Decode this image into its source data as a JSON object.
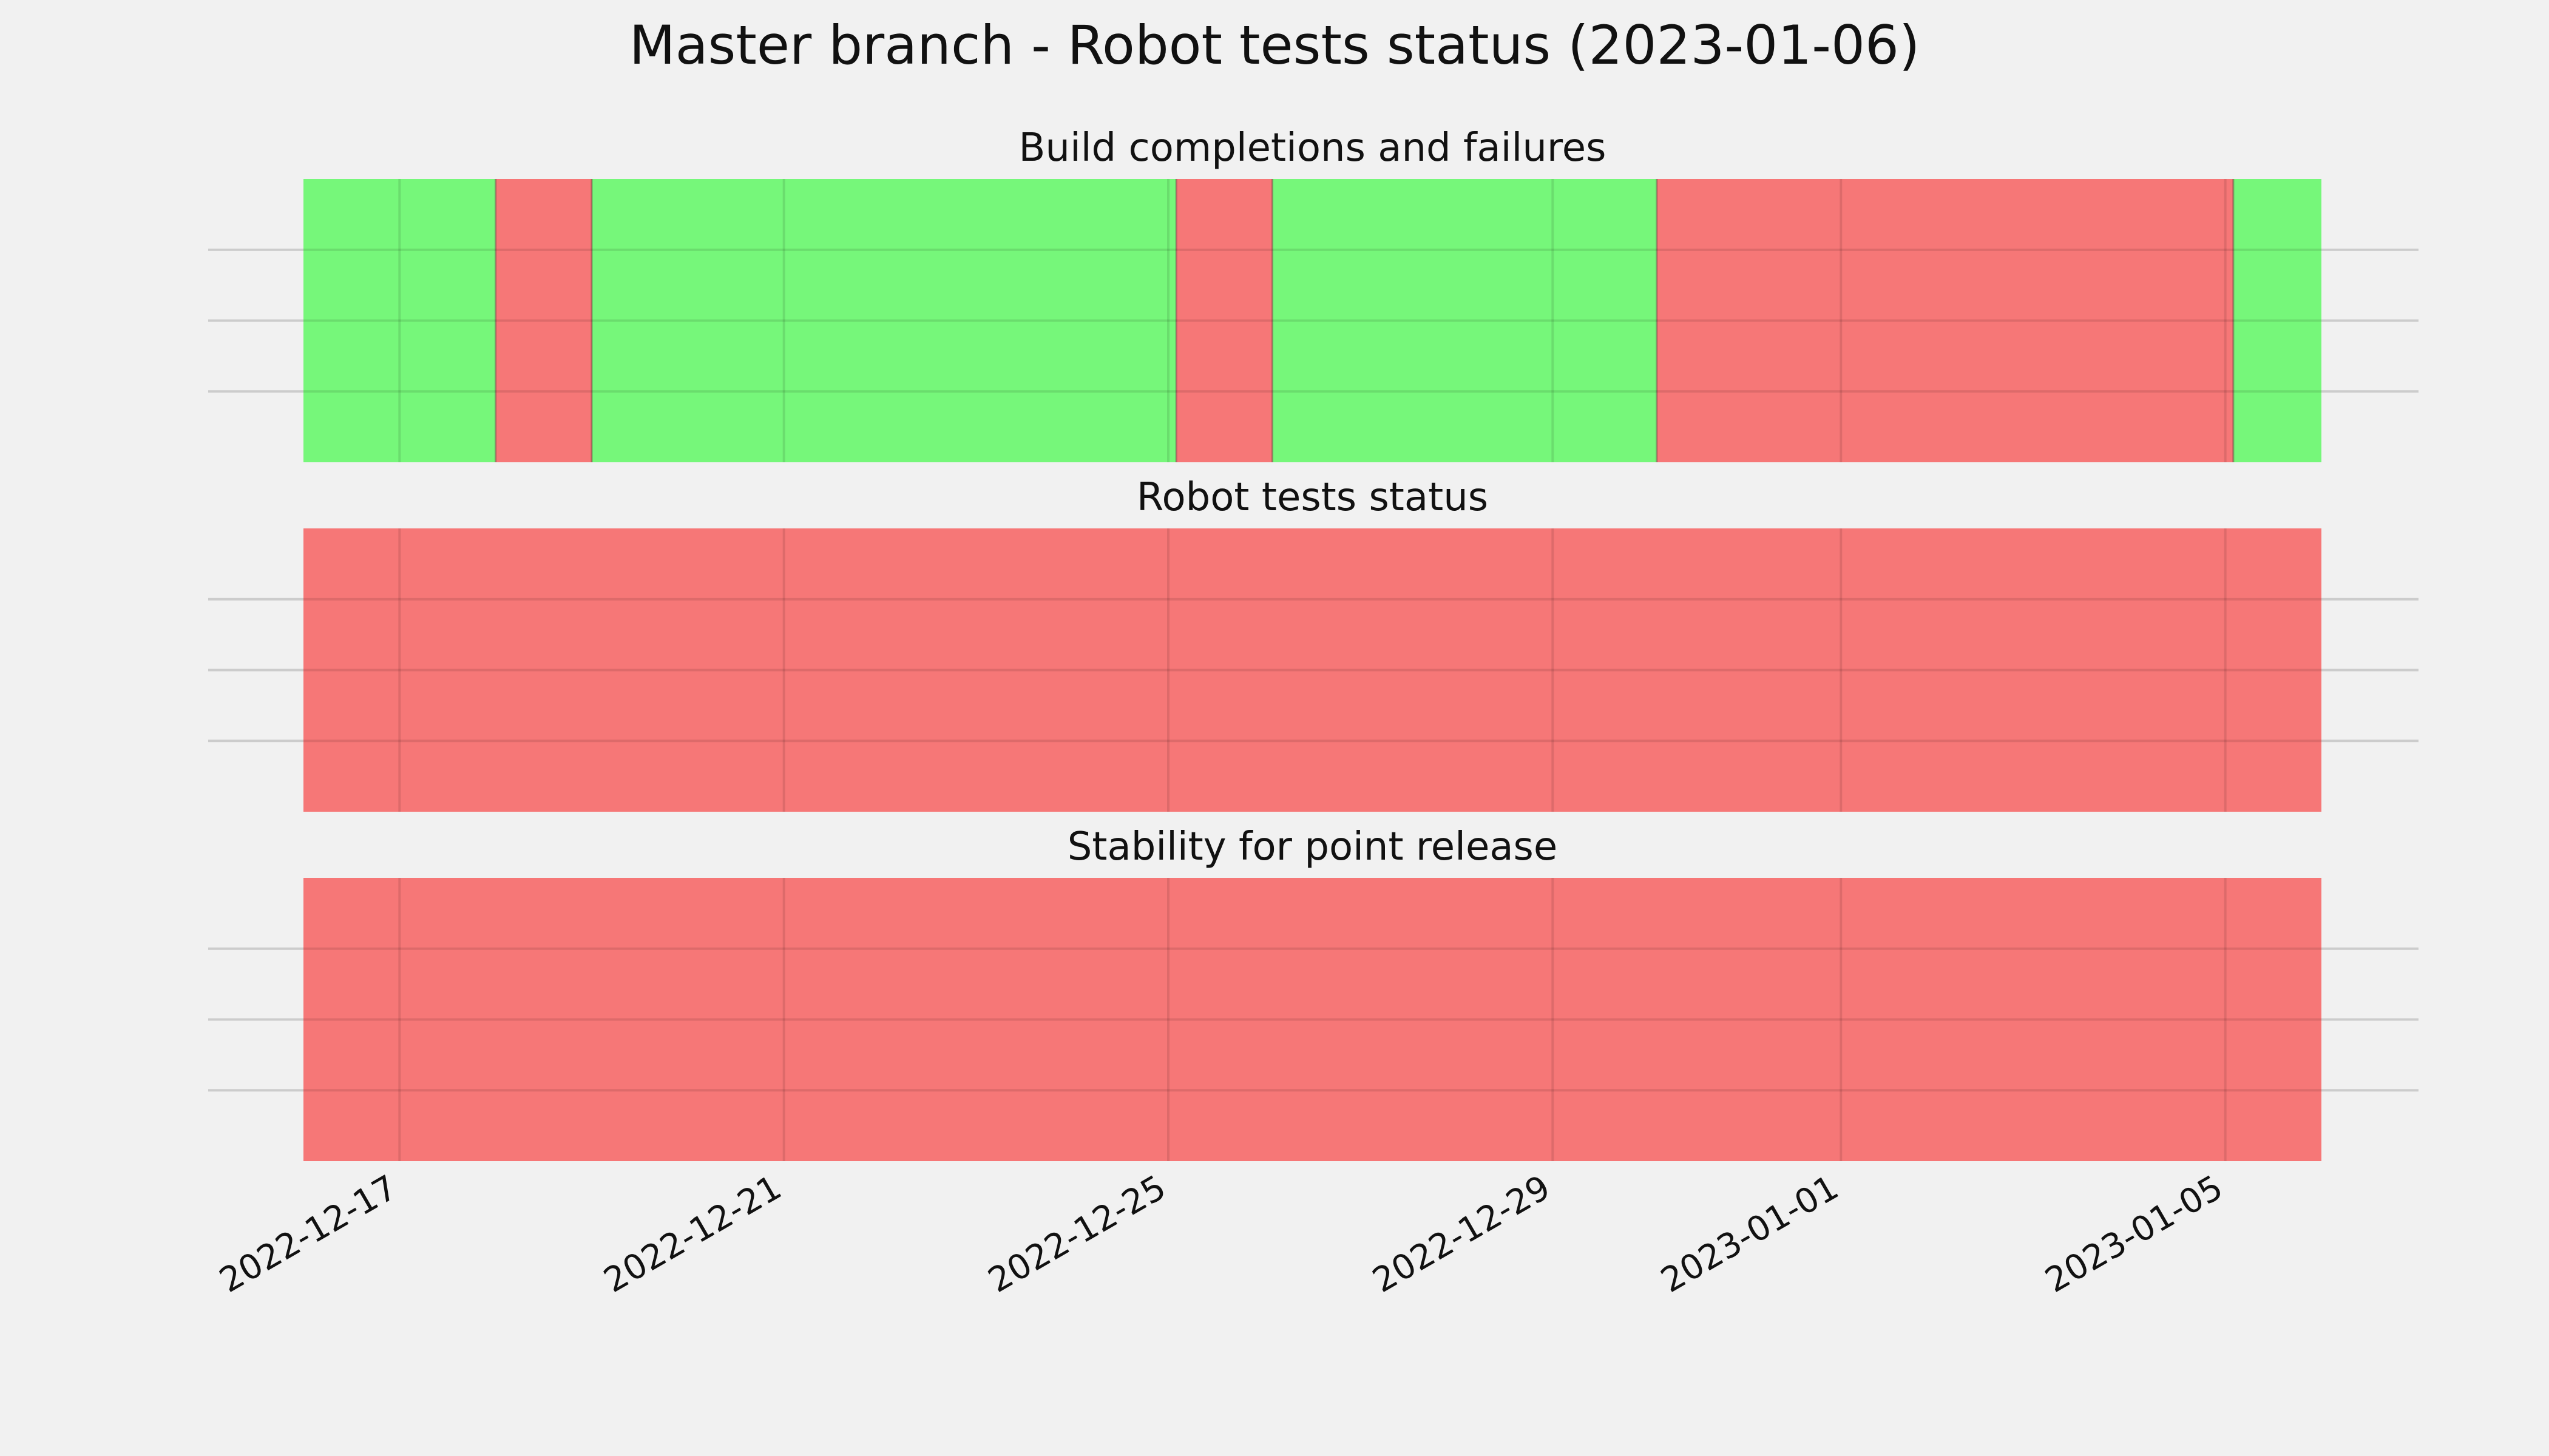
{
  "colors": {
    "background": "#f1f1f1",
    "pass": "#76f77a",
    "fail": "#f67777",
    "grid": "#cccccc",
    "text": "#111111"
  },
  "chart_data": {
    "type": "timeline",
    "title": "Master branch - Robot tests status (2023-01-06)",
    "x_axis": {
      "type": "date",
      "range": [
        "2022-12-16",
        "2023-01-06"
      ],
      "ticks": [
        "2022-12-17",
        "2022-12-21",
        "2022-12-25",
        "2022-12-29",
        "2023-01-01",
        "2023-01-05"
      ],
      "tick_labels": [
        "2022-12-17",
        "2022-12-21",
        "2022-12-25",
        "2022-12-29",
        "2023-01-01",
        "2023-01-05"
      ]
    },
    "grid": true,
    "panels": [
      {
        "title": "Build completions and failures",
        "segments": [
          {
            "start": "2022-12-16",
            "end": "2022-12-18 00:00",
            "status": "pass"
          },
          {
            "start": "2022-12-18 00:00",
            "end": "2022-12-19 00:00",
            "status": "fail"
          },
          {
            "start": "2022-12-19 00:00",
            "end": "2022-12-25 02:00",
            "status": "pass"
          },
          {
            "start": "2022-12-25 02:00",
            "end": "2022-12-26 02:00",
            "status": "fail"
          },
          {
            "start": "2022-12-26 02:00",
            "end": "2022-12-30 02:00",
            "status": "pass"
          },
          {
            "start": "2022-12-30 02:00",
            "end": "2023-01-05 02:00",
            "status": "fail"
          },
          {
            "start": "2023-01-05 02:00",
            "end": "2023-01-06",
            "status": "pass"
          }
        ]
      },
      {
        "title": "Robot tests status",
        "segments": [
          {
            "start": "2022-12-16",
            "end": "2023-01-06",
            "status": "fail"
          }
        ]
      },
      {
        "title": "Stability for point release",
        "segments": [
          {
            "start": "2022-12-16",
            "end": "2023-01-06",
            "status": "fail"
          }
        ]
      }
    ]
  }
}
